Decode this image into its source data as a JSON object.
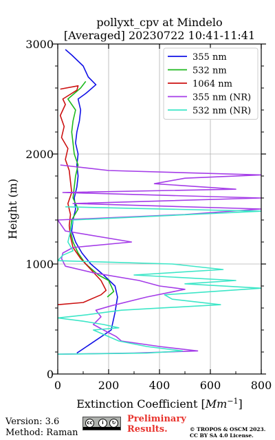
{
  "chart_data": {
    "type": "line",
    "title": "pollyxt_cpv at Mindelo",
    "subtitle": "[Averaged] 20230722 10:41-11:41",
    "xlabel": "Extinction Coefficient",
    "xlabel_unit": "Mm^-1",
    "ylabel": "Height (m)",
    "xlim": [
      0,
      800
    ],
    "ylim": [
      0,
      3000
    ],
    "xticks": [
      "0",
      "200",
      "400",
      "600",
      "800"
    ],
    "yticks": [
      "0",
      "1000",
      "2000",
      "3000"
    ],
    "grid": true,
    "legend_position": "top-right",
    "series": [
      {
        "name": "355 nm",
        "color": "#1010e6",
        "points": [
          [
            75,
            190
          ],
          [
            210,
            400
          ],
          [
            225,
            560
          ],
          [
            235,
            700
          ],
          [
            225,
            800
          ],
          [
            180,
            900
          ],
          [
            130,
            1000
          ],
          [
            95,
            1100
          ],
          [
            70,
            1200
          ],
          [
            55,
            1300
          ],
          [
            60,
            1400
          ],
          [
            70,
            1500
          ],
          [
            65,
            1600
          ],
          [
            75,
            1700
          ],
          [
            80,
            1800
          ],
          [
            75,
            1900
          ],
          [
            80,
            2000
          ],
          [
            70,
            2100
          ],
          [
            75,
            2200
          ],
          [
            85,
            2300
          ],
          [
            90,
            2400
          ],
          [
            80,
            2500
          ],
          [
            110,
            2550
          ],
          [
            150,
            2630
          ],
          [
            120,
            2700
          ],
          [
            100,
            2800
          ],
          [
            55,
            2900
          ],
          [
            30,
            2950
          ]
        ]
      },
      {
        "name": "532 nm",
        "color": "#1cb91c",
        "points": [
          [
            195,
            700
          ],
          [
            220,
            750
          ],
          [
            200,
            850
          ],
          [
            160,
            900
          ],
          [
            110,
            1000
          ],
          [
            80,
            1100
          ],
          [
            60,
            1200
          ],
          [
            50,
            1300
          ],
          [
            55,
            1400
          ],
          [
            80,
            1500
          ],
          [
            60,
            1600
          ],
          [
            65,
            1700
          ],
          [
            70,
            1800
          ],
          [
            80,
            1900
          ],
          [
            65,
            2000
          ],
          [
            60,
            2100
          ],
          [
            55,
            2200
          ],
          [
            60,
            2300
          ],
          [
            70,
            2400
          ],
          [
            40,
            2500
          ],
          [
            90,
            2600
          ],
          [
            110,
            2660
          ]
        ]
      },
      {
        "name": "1064 nm",
        "color": "#cc1010",
        "points": [
          [
            0,
            630
          ],
          [
            100,
            650
          ],
          [
            170,
            720
          ],
          [
            190,
            760
          ],
          [
            170,
            850
          ],
          [
            130,
            950
          ],
          [
            90,
            1050
          ],
          [
            60,
            1150
          ],
          [
            50,
            1250
          ],
          [
            45,
            1350
          ],
          [
            50,
            1450
          ],
          [
            40,
            1550
          ],
          [
            55,
            1650
          ],
          [
            50,
            1750
          ],
          [
            45,
            1850
          ],
          [
            30,
            1950
          ],
          [
            40,
            2050
          ],
          [
            15,
            2150
          ],
          [
            25,
            2250
          ],
          [
            10,
            2350
          ],
          [
            30,
            2450
          ],
          [
            20,
            2500
          ],
          [
            75,
            2580
          ],
          [
            80,
            2620
          ],
          [
            10,
            2590
          ]
        ]
      },
      {
        "name": "355 nm (NR)",
        "color": "#a43ce8",
        "points": [
          [
            0,
            180
          ],
          [
            300,
            190
          ],
          [
            550,
            210
          ],
          [
            400,
            250
          ],
          [
            250,
            300
          ],
          [
            230,
            340
          ],
          [
            180,
            400
          ],
          [
            140,
            450
          ],
          [
            170,
            520
          ],
          [
            150,
            580
          ],
          [
            210,
            620
          ],
          [
            350,
            700
          ],
          [
            500,
            770
          ],
          [
            400,
            800
          ],
          [
            320,
            850
          ],
          [
            140,
            920
          ],
          [
            30,
            980
          ],
          [
            15,
            1050
          ],
          [
            20,
            1100
          ],
          [
            60,
            1150
          ],
          [
            290,
            1200
          ],
          [
            30,
            1300
          ],
          [
            0,
            1400
          ],
          [
            500,
            1450
          ],
          [
            800,
            1500
          ],
          [
            60,
            1550
          ],
          [
            800,
            1600
          ],
          [
            20,
            1650
          ],
          [
            700,
            1680
          ],
          [
            380,
            1730
          ],
          [
            500,
            1780
          ],
          [
            800,
            1810
          ],
          [
            200,
            1850
          ],
          [
            10,
            1900
          ]
        ]
      },
      {
        "name": "532 nm (NR)",
        "color": "#3ce6c7",
        "points": [
          [
            0,
            180
          ],
          [
            350,
            190
          ],
          [
            490,
            210
          ],
          [
            350,
            250
          ],
          [
            240,
            300
          ],
          [
            180,
            360
          ],
          [
            140,
            400
          ],
          [
            240,
            420
          ],
          [
            180,
            450
          ],
          [
            100,
            480
          ],
          [
            0,
            510
          ],
          [
            120,
            540
          ],
          [
            250,
            580
          ],
          [
            640,
            630
          ],
          [
            450,
            680
          ],
          [
            420,
            720
          ],
          [
            800,
            780
          ],
          [
            500,
            820
          ],
          [
            700,
            850
          ],
          [
            300,
            900
          ],
          [
            650,
            950
          ],
          [
            450,
            1000
          ],
          [
            0,
            1030
          ],
          [
            20,
            1080
          ],
          [
            60,
            1120
          ],
          [
            40,
            1200
          ],
          [
            50,
            1300
          ],
          [
            60,
            1400
          ],
          [
            800,
            1480
          ],
          [
            30,
            1520
          ]
        ]
      }
    ]
  },
  "footer": {
    "version": "Version: 3.6",
    "method": "Method: Raman",
    "preliminary_line1": "Preliminary",
    "preliminary_line2": "Results.",
    "copyright_line1": "© TROPOS & OSCM 2023.",
    "copyright_line2": "CC BY SA 4.0 License."
  }
}
